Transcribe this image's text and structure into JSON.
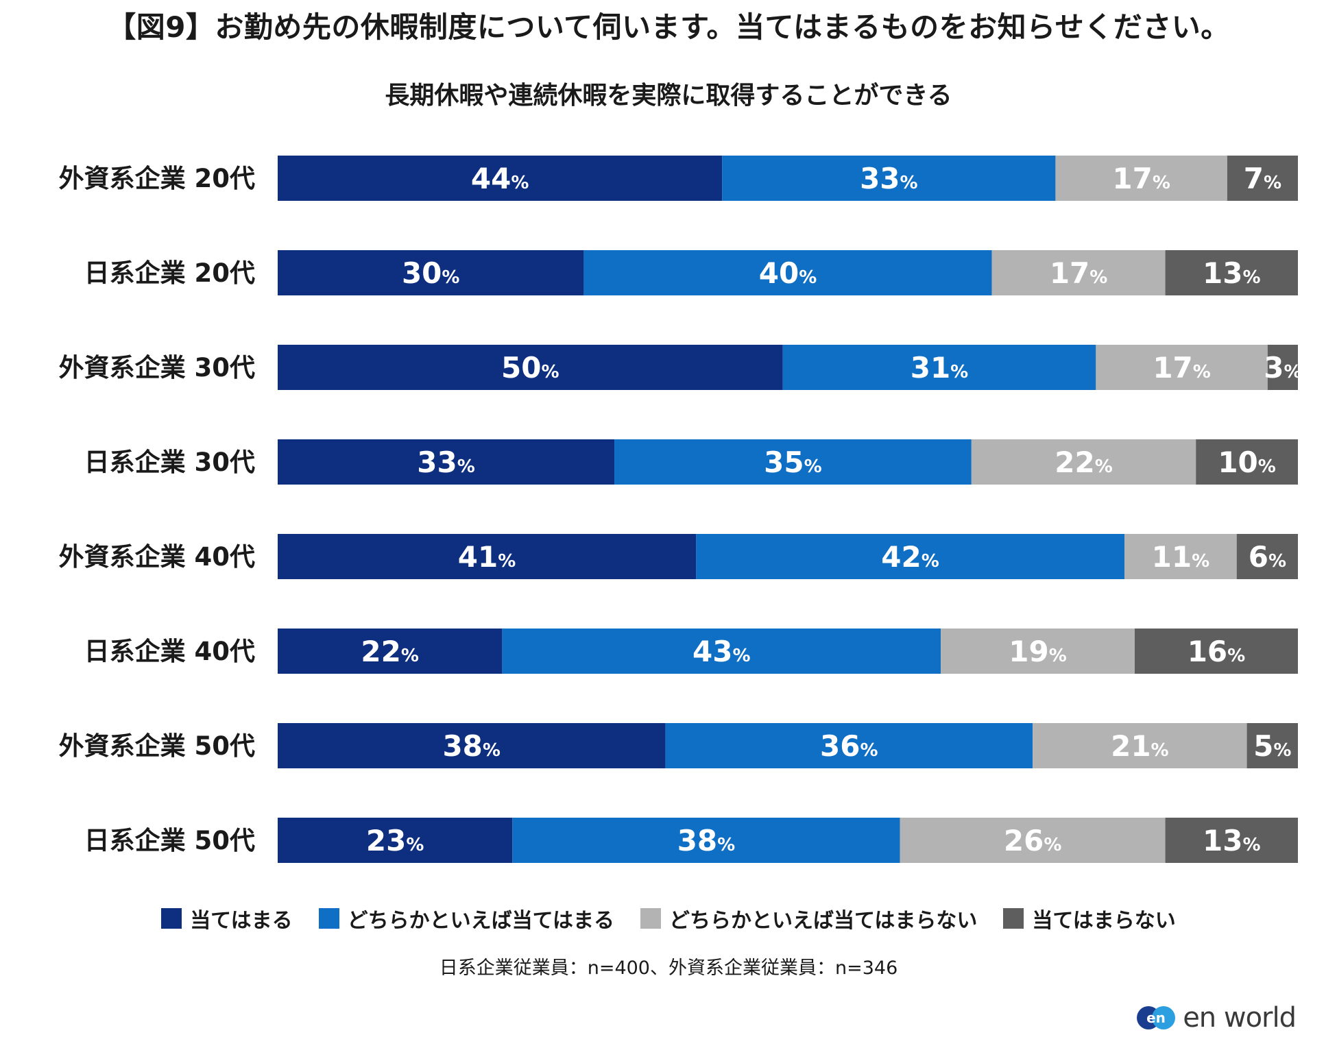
{
  "title": "【図9】お勤め先の休暇制度について伺います。当てはまるものをお知らせください。",
  "note": "日系企業従業員：n=400、外資系企業従業員：n=346",
  "logo": {
    "text": "en world",
    "mark_text": "en"
  },
  "colors": {
    "applies": "#0e2f80",
    "somewhat_applies": "#0f6fc4",
    "somewhat_not": "#b3b3b3",
    "not_applies": "#5e5e5e"
  },
  "legend": [
    {
      "label": "当てはまる",
      "color": "#0e2f80"
    },
    {
      "label": "どちらかといえば当てはまる",
      "color": "#0f6fc4"
    },
    {
      "label": "どちらかといえば当てはまらない",
      "color": "#b3b3b3"
    },
    {
      "label": "当てはまらない",
      "color": "#5e5e5e"
    }
  ],
  "chart_data": {
    "type": "bar",
    "orientation": "horizontal",
    "stacked": true,
    "title": "長期休暇や連続休暇を実際に取得することができる",
    "categories": [
      "外資系企業 20代",
      "日系企業 20代",
      "外資系企業 30代",
      "日系企業 30代",
      "外資系企業 40代",
      "日系企業 40代",
      "外資系企業 50代",
      "日系企業 50代"
    ],
    "unit": "%",
    "series": [
      {
        "name": "当てはまる",
        "color": "#0e2f80",
        "values": [
          44,
          30,
          50,
          33,
          41,
          22,
          38,
          23
        ]
      },
      {
        "name": "どちらかといえば当てはまる",
        "color": "#0f6fc4",
        "values": [
          33,
          40,
          31,
          35,
          42,
          43,
          36,
          38
        ]
      },
      {
        "name": "どちらかといえば当てはまらない",
        "color": "#b3b3b3",
        "values": [
          17,
          17,
          17,
          22,
          11,
          19,
          21,
          26
        ]
      },
      {
        "name": "当てはまらない",
        "color": "#5e5e5e",
        "values": [
          7,
          13,
          3,
          10,
          6,
          16,
          5,
          13
        ]
      }
    ]
  }
}
